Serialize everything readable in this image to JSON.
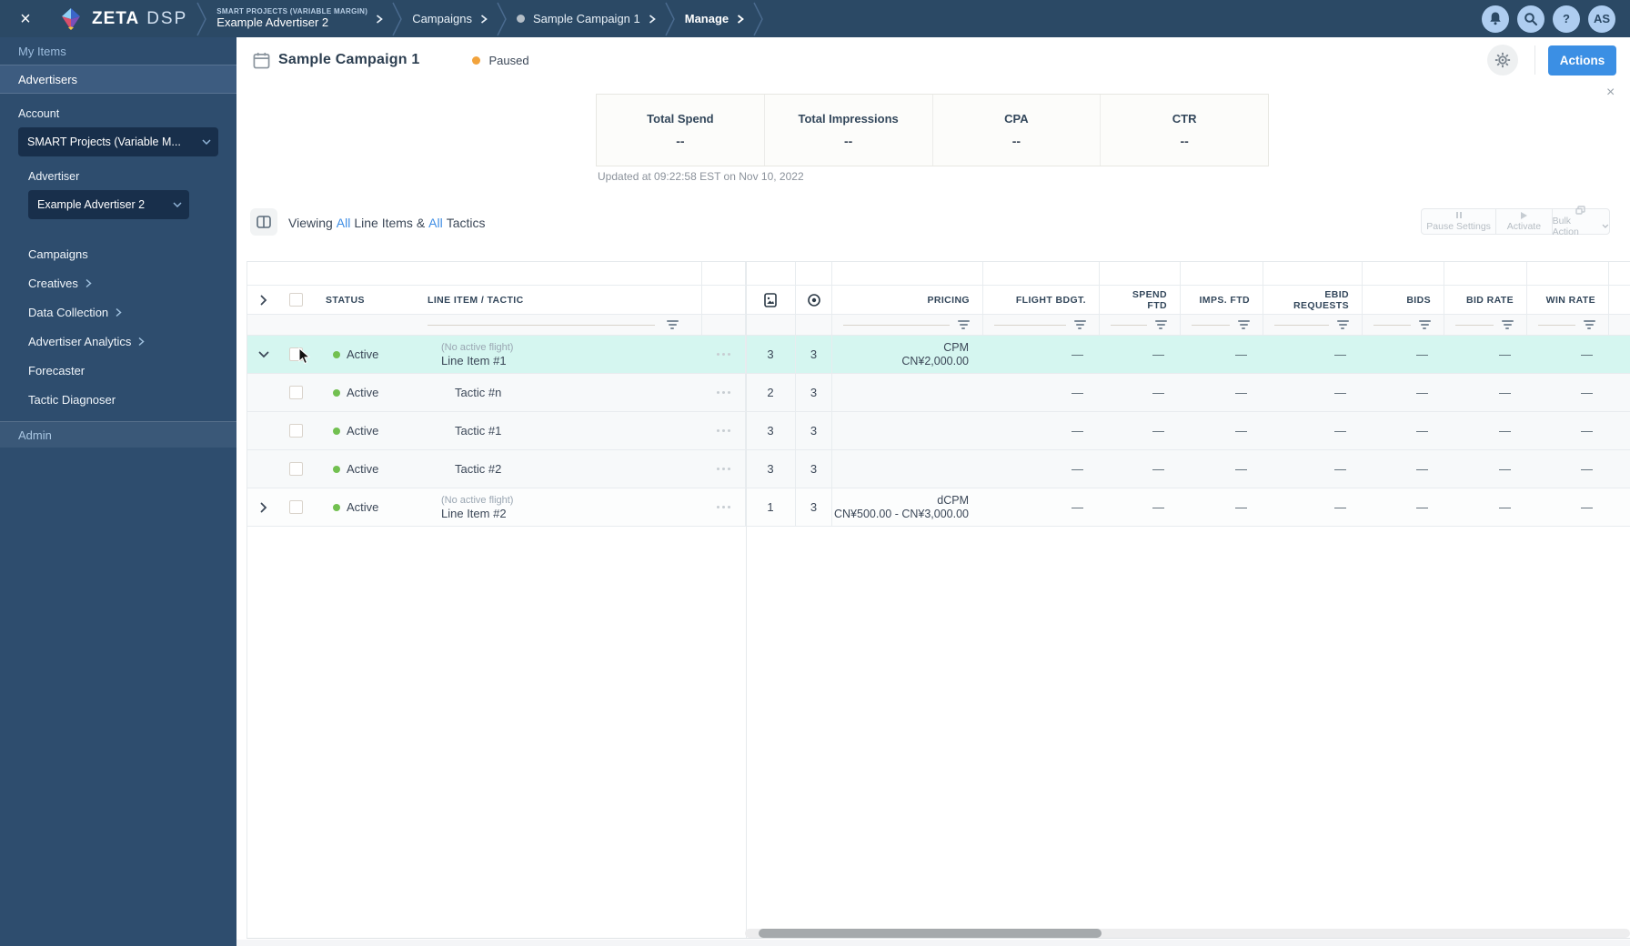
{
  "colors": {
    "accent": "#3b8fe4",
    "row_highlight": "#d5f6f0",
    "active_dot": "#72c050",
    "paused_dot": "#f2a33c",
    "topbar_bg": "#2b4965"
  },
  "topbar": {
    "close_icon": "×",
    "brand": {
      "zeta": "ZETA",
      "dsp": "DSP"
    },
    "breadcrumbs": {
      "b1_eyebrow": "SMART PROJECTS (VARIABLE MARGIN)",
      "b1_label": "Example Advertiser 2",
      "b2_label": "Campaigns",
      "b3_label": "Sample Campaign 1",
      "b4_label": "Manage"
    },
    "icons": {
      "notifications": "bell-icon",
      "search": "search-icon",
      "help": "?",
      "avatar": "AS"
    }
  },
  "sidebar": {
    "my_items": "My Items",
    "advertisers": "Advertisers",
    "account_label": "Account",
    "account_value": "SMART Projects (Variable M...",
    "advertiser_label": "Advertiser",
    "advertiser_value": "Example Advertiser 2",
    "nav": [
      {
        "label": "Campaigns",
        "chevron": false
      },
      {
        "label": "Creatives",
        "chevron": true
      },
      {
        "label": "Data Collection",
        "chevron": true
      },
      {
        "label": "Advertiser Analytics",
        "chevron": true
      },
      {
        "label": "Forecaster",
        "chevron": false
      },
      {
        "label": "Tactic Diagnoser",
        "chevron": false
      }
    ],
    "admin": "Admin"
  },
  "header": {
    "title": "Sample Campaign 1",
    "status": "Paused",
    "actions": "Actions"
  },
  "banner": {
    "metrics": [
      {
        "label": "Total Spend",
        "value": "--"
      },
      {
        "label": "Total Impressions",
        "value": "--"
      },
      {
        "label": "CPA",
        "value": "--"
      },
      {
        "label": "CTR",
        "value": "--"
      }
    ],
    "updated": "Updated at 09:22:58 EST on Nov 10, 2022",
    "close_icon": "×"
  },
  "toolbar": {
    "viewing": {
      "prefix": "Viewing",
      "all1": "All",
      "mid": "Line Items &",
      "all2": "All",
      "suffix": "Tactics"
    },
    "actions": [
      {
        "label": "Pause Settings",
        "icon": "pause-icon",
        "dropdown": false
      },
      {
        "label": "Activate",
        "icon": "play-icon",
        "dropdown": false
      },
      {
        "label": "Bulk Action",
        "icon": "bulk-icon",
        "dropdown": true
      }
    ]
  },
  "table": {
    "columns": [
      {
        "key": "expander",
        "label": ""
      },
      {
        "key": "select",
        "label": ""
      },
      {
        "key": "status",
        "label": "STATUS"
      },
      {
        "key": "name",
        "label": "LINE ITEM / TACTIC"
      },
      {
        "key": "menu",
        "label": ""
      },
      {
        "key": "creatives",
        "label": "",
        "icon": "image-file-icon"
      },
      {
        "key": "tactics",
        "label": "",
        "icon": "target-icon"
      },
      {
        "key": "pricing",
        "label": "PRICING"
      },
      {
        "key": "flight_budget",
        "label": "FLIGHT BDGT."
      },
      {
        "key": "spend_ftd",
        "label": "SPEND\nFTD"
      },
      {
        "key": "imps_ftd",
        "label": "IMPS. FTD"
      },
      {
        "key": "ebid_requests",
        "label": "EBID\nREQUESTS"
      },
      {
        "key": "bids",
        "label": "BIDS"
      },
      {
        "key": "bid_rate",
        "label": "BID RATE"
      },
      {
        "key": "win_rate",
        "label": "WIN RATE"
      }
    ],
    "metric_placeholder": "—",
    "rows": [
      {
        "type": "line_item",
        "expanded": true,
        "highlighted": true,
        "status": "Active",
        "note": "(No active flight)",
        "name": "Line Item #1",
        "creatives": "3",
        "tactics": "3",
        "pricing_type": "CPM",
        "pricing_value": "CN¥2,000.00"
      },
      {
        "type": "tactic",
        "status": "Active",
        "name": "Tactic #n",
        "creatives": "2",
        "tactics": "3"
      },
      {
        "type": "tactic",
        "status": "Active",
        "name": "Tactic #1",
        "creatives": "3",
        "tactics": "3"
      },
      {
        "type": "tactic",
        "status": "Active",
        "name": "Tactic #2",
        "creatives": "3",
        "tactics": "3"
      },
      {
        "type": "line_item",
        "expanded": false,
        "highlighted": false,
        "status": "Active",
        "note": "(No active flight)",
        "name": "Line Item #2",
        "creatives": "1",
        "tactics": "3",
        "pricing_type": "dCPM",
        "pricing_value": "CN¥500.00 - CN¥3,000.00"
      }
    ]
  }
}
